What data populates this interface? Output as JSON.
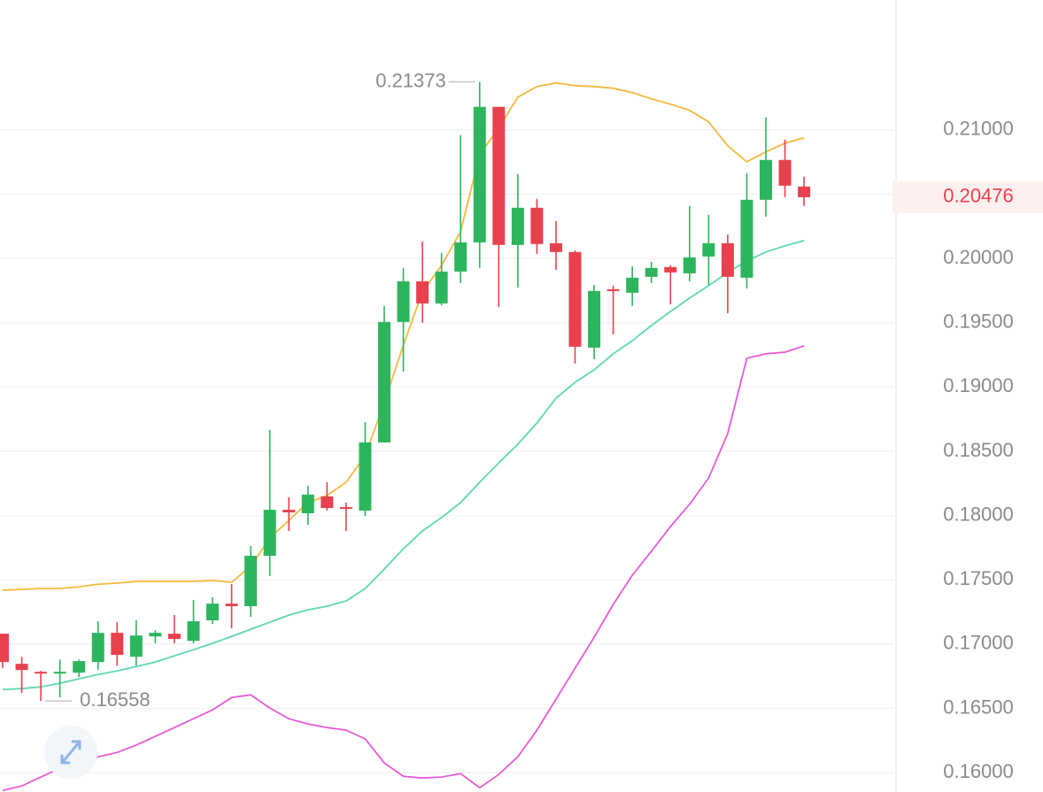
{
  "chart_data": {
    "type": "candlestick",
    "categories": [
      null,
      null,
      null,
      null,
      null,
      null,
      null,
      null,
      null,
      null,
      null,
      null,
      null,
      null,
      null,
      null,
      null,
      null,
      null,
      null,
      null,
      null,
      null,
      null,
      null,
      null,
      null,
      null,
      null,
      null,
      null,
      null,
      null,
      null,
      null,
      null,
      null,
      null,
      null,
      null,
      null,
      null,
      null
    ],
    "open": [
      0.17081,
      0.16847,
      0.16785,
      0.16772,
      0.16778,
      0.16861,
      0.17088,
      0.16902,
      0.1706,
      0.17081,
      0.17026,
      0.17185,
      0.17315,
      0.17295,
      0.17687,
      0.18045,
      0.18018,
      0.18149,
      0.18066,
      0.18039,
      0.18569,
      0.19506,
      0.19822,
      0.1965,
      0.19898,
      0.20125,
      0.21179,
      0.20105,
      0.20394,
      0.20118,
      0.2005,
      0.19306,
      0.1976,
      0.19733,
      0.19857,
      0.19933,
      0.19884,
      0.20015,
      0.20118,
      0.1985,
      0.20456,
      0.20766,
      0.20559
    ],
    "high": [
      0.17081,
      0.16902,
      0.16792,
      0.16881,
      0.16881,
      0.17178,
      0.17171,
      0.17185,
      0.17109,
      0.17226,
      0.17343,
      0.17364,
      0.17467,
      0.17763,
      0.18665,
      0.18142,
      0.18231,
      0.18259,
      0.18101,
      0.18727,
      0.1963,
      0.19926,
      0.20132,
      0.20043,
      0.20959,
      0.21373,
      0.21179,
      0.20656,
      0.20463,
      0.20291,
      0.20063,
      0.19795,
      0.19788,
      0.19939,
      0.19974,
      0.19946,
      0.20408,
      0.20339,
      0.20187,
      0.20663,
      0.21096,
      0.20924,
      0.20635
    ],
    "low": [
      0.16813,
      0.1662,
      0.16558,
      0.16586,
      0.16744,
      0.16799,
      0.16833,
      0.16833,
      0.17006,
      0.17006,
      0.17006,
      0.17157,
      0.17123,
      0.17212,
      0.17529,
      0.1788,
      0.17928,
      0.18039,
      0.1788,
      0.17997,
      0.18569,
      0.1912,
      0.19499,
      0.19636,
      0.19809,
      0.19926,
      0.19623,
      0.19774,
      0.20036,
      0.19912,
      0.19182,
      0.19216,
      0.19409,
      0.1963,
      0.19809,
      0.19643,
      0.19822,
      0.19795,
      0.19574,
      0.19767,
      0.20325,
      0.20477,
      0.20408
    ],
    "close": [
      0.16861,
      0.16799,
      0.16772,
      0.16785,
      0.16868,
      0.17088,
      0.16916,
      0.17067,
      0.17088,
      0.1704,
      0.17178,
      0.17315,
      0.17295,
      0.17687,
      0.18045,
      0.18025,
      0.18163,
      0.18059,
      0.18059,
      0.18569,
      0.19506,
      0.19822,
      0.1965,
      0.19898,
      0.20125,
      0.21179,
      0.20105,
      0.20394,
      0.20112,
      0.2005,
      0.19313,
      0.19747,
      0.19747,
      0.1985,
      0.19926,
      0.19891,
      0.20008,
      0.20118,
      0.19857,
      0.20456,
      0.20766,
      0.20566,
      0.20476
    ],
    "up_color": "#2db55d",
    "down_color": "#e8414e",
    "upper_band": {
      "color": "#f5b83d",
      "values": [
        0.17419,
        0.17426,
        0.17433,
        0.17433,
        0.17446,
        0.17467,
        0.17474,
        0.17488,
        0.17488,
        0.17488,
        0.17488,
        0.17495,
        0.17481,
        0.17605,
        0.17825,
        0.17963,
        0.18101,
        0.18156,
        0.18259,
        0.18466,
        0.18879,
        0.19326,
        0.1974,
        0.19946,
        0.20208,
        0.20807,
        0.21014,
        0.21255,
        0.21337,
        0.21365,
        0.21344,
        0.21337,
        0.21324,
        0.21289,
        0.21241,
        0.212,
        0.21152,
        0.21062,
        0.20876,
        0.20752,
        0.20828,
        0.20897,
        0.20938
      ]
    },
    "middle_band": {
      "color": "#5fd6b5",
      "values": [
        0.16647,
        0.16654,
        0.16668,
        0.16696,
        0.1673,
        0.16764,
        0.16792,
        0.16826,
        0.16861,
        0.16909,
        0.16957,
        0.17006,
        0.17061,
        0.17116,
        0.17171,
        0.17226,
        0.17267,
        0.17295,
        0.17336,
        0.17433,
        0.17584,
        0.17742,
        0.1788,
        0.17984,
        0.18101,
        0.18259,
        0.1841,
        0.18555,
        0.1872,
        0.18913,
        0.19037,
        0.19134,
        0.19258,
        0.19361,
        0.19478,
        0.19588,
        0.19691,
        0.19788,
        0.19891,
        0.19981,
        0.2005,
        0.20098,
        0.20139
      ]
    },
    "lower_band": {
      "color": "#e85ad6",
      "values": [
        0.15862,
        0.15897,
        0.15966,
        0.16034,
        0.16076,
        0.16124,
        0.16158,
        0.16214,
        0.16282,
        0.16351,
        0.1642,
        0.16489,
        0.16585,
        0.16606,
        0.16503,
        0.1642,
        0.16379,
        0.16351,
        0.16331,
        0.16262,
        0.16076,
        0.15972,
        0.15959,
        0.15966,
        0.15993,
        0.15883,
        0.15986,
        0.16124,
        0.16331,
        0.16572,
        0.16813,
        0.17054,
        0.17309,
        0.17536,
        0.17722,
        0.17915,
        0.18087,
        0.18293,
        0.18638,
        0.19223,
        0.19258,
        0.19271,
        0.1932
      ]
    },
    "ylim": [
      0.1585,
      0.2201
    ],
    "yticks": [
      {
        "value": 0.16,
        "label": "0.16000"
      },
      {
        "value": 0.165,
        "label": "0.16500"
      },
      {
        "value": 0.17,
        "label": "0.17000"
      },
      {
        "value": 0.175,
        "label": "0.17500"
      },
      {
        "value": 0.18,
        "label": "0.18000"
      },
      {
        "value": 0.185,
        "label": "0.18500"
      },
      {
        "value": 0.19,
        "label": "0.19000"
      },
      {
        "value": 0.195,
        "label": "0.19500"
      },
      {
        "value": 0.2,
        "label": "0.20000"
      },
      {
        "value": 0.205,
        "label": "0.20500"
      },
      {
        "value": 0.21,
        "label": "0.21000"
      }
    ],
    "grid": true
  }
}
